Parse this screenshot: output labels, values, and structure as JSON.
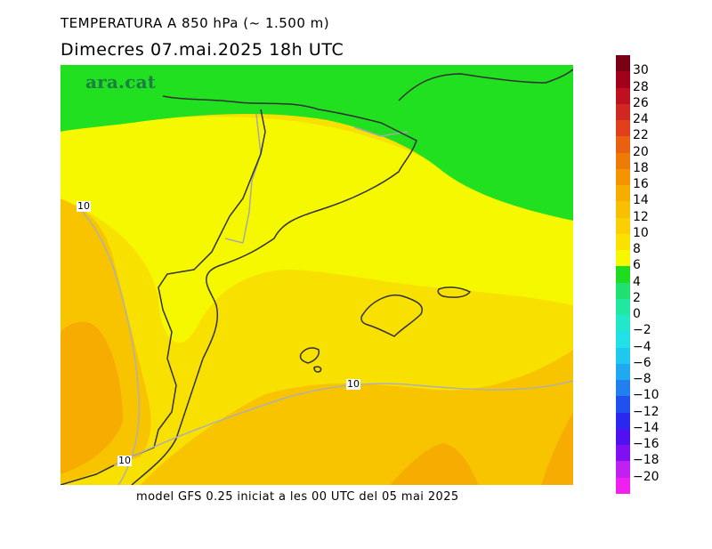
{
  "title": "TEMPERATURA A 850 hPa (~ 1.500 m)",
  "subtitle": "Dimecres  07.mai.2025 18h UTC",
  "logo": "ara.cat",
  "footer": "model GFS 0.25 iniciat a les 00 UTC del 05 mai 2025",
  "contour_labels": [
    "10",
    "10",
    "10"
  ],
  "colorbar": {
    "labels": [
      "30",
      "28",
      "26",
      "24",
      "22",
      "20",
      "18",
      "16",
      "14",
      "12",
      "10",
      "8",
      "6",
      "4",
      "2",
      "0",
      "-2",
      "-4",
      "-6",
      "-8",
      "-10",
      "-12",
      "-14",
      "-16",
      "-18",
      "-20"
    ],
    "colors": [
      "#7a0016",
      "#a0001c",
      "#be1020",
      "#d02820",
      "#e0401a",
      "#e86010",
      "#ee7a08",
      "#f59400",
      "#f7ac00",
      "#f8c000",
      "#fad000",
      "#fce000",
      "#f6f800",
      "#20dc20",
      "#20e070",
      "#20e8a0",
      "#20e8c8",
      "#20e0e8",
      "#20c8f0",
      "#20a8f0",
      "#2080f0",
      "#2050f0",
      "#2828f0",
      "#5010f0",
      "#8010f0",
      "#c020f0",
      "#f020f0"
    ]
  },
  "map": {
    "colors": {
      "green": "#20e020",
      "yellow": "#f6f800",
      "yellow_orange": "#f8e000",
      "orange_light": "#f8c400",
      "orange": "#f6ac00",
      "orange_dark": "#f29a00",
      "coast": "#303030",
      "border": "#a8a8a8"
    }
  }
}
